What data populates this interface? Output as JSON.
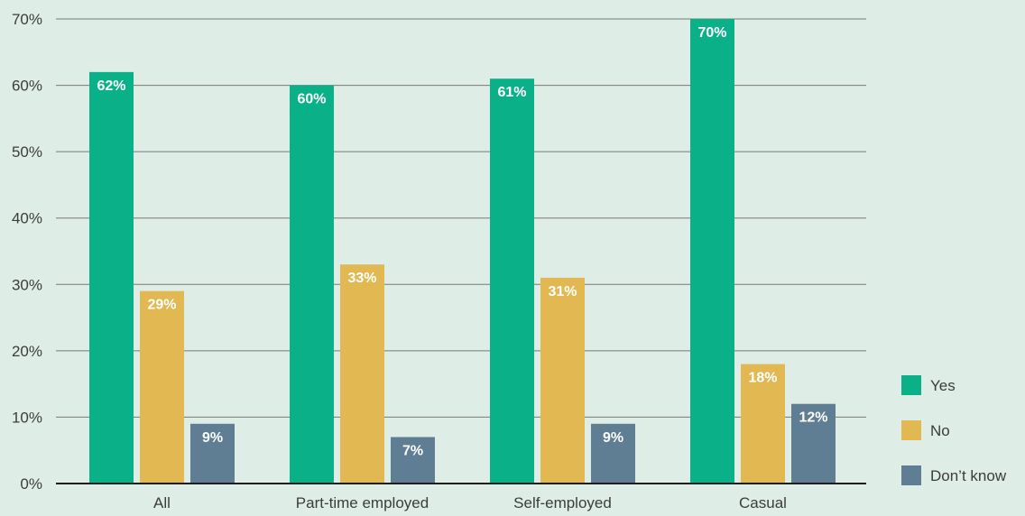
{
  "chart_data": {
    "type": "bar",
    "categories": [
      "All",
      "Part-time employed",
      "Self-employed",
      "Casual"
    ],
    "series": [
      {
        "name": "Yes",
        "values": [
          62,
          60,
          61,
          70
        ],
        "labels": [
          "62%",
          "60%",
          "61%",
          "70%"
        ],
        "color": "#0ab087"
      },
      {
        "name": "No",
        "values": [
          29,
          33,
          31,
          18
        ],
        "labels": [
          "29%",
          "33%",
          "31%",
          "18%"
        ],
        "color": "#e1b851"
      },
      {
        "name": "Don’t know",
        "values": [
          9,
          7,
          9,
          12
        ],
        "labels": [
          "9%",
          "7%",
          "9%",
          "12%"
        ],
        "color": "#5f7d93"
      }
    ],
    "yticks": [
      "0%",
      "10%",
      "20%",
      "30%",
      "40%",
      "50%",
      "60%",
      "70%"
    ],
    "ylim": [
      0,
      70
    ],
    "grid": true,
    "legend_position": "bottom-right",
    "colors": {
      "background": "#deede6",
      "grid": "#7a7a7a",
      "text": "#3c3c3c"
    }
  }
}
